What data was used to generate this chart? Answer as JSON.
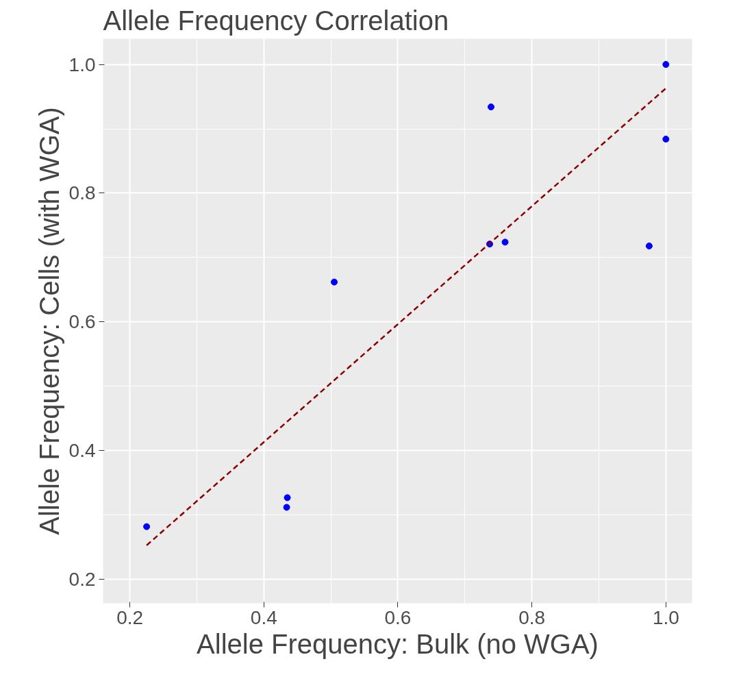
{
  "chart_data": {
    "type": "scatter",
    "title": "Allele Frequency Correlation",
    "xlabel": "Allele Frequency: Bulk (no WGA)",
    "ylabel": "Allele Frequency: Cells (with WGA)",
    "xlim": [
      0.16,
      1.039
    ],
    "ylim": [
      0.163,
      1.04
    ],
    "xticks": [
      0.2,
      0.4,
      0.6,
      0.8,
      {
        "value": 1,
        "label": "1.0"
      }
    ],
    "yticks": [
      0.2,
      0.4,
      0.6,
      0.8,
      {
        "value": 1,
        "label": "1.0"
      }
    ],
    "grid": true,
    "series": [
      {
        "marker": "circle",
        "color": "#0000ff",
        "x": [
          0.225,
          0.435,
          0.434,
          0.505,
          0.739,
          0.737,
          0.76,
          0.975,
          1.0,
          1.0
        ],
        "values": [
          0.282,
          0.327,
          0.312,
          0.662,
          0.934,
          0.721,
          0.724,
          0.718,
          0.884,
          1.0
        ]
      },
      {
        "type": "line",
        "color": "#8b0000",
        "line_style": "dashed",
        "x": [
          0.225,
          1.0
        ],
        "values": [
          0.253,
          0.963
        ]
      }
    ]
  }
}
